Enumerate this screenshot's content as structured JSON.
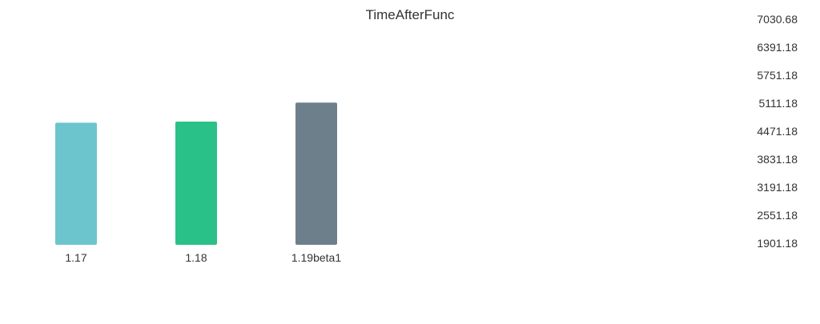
{
  "chart_data": {
    "type": "bar",
    "title": "TimeAfterFunc",
    "xlabel": "",
    "ylabel": "",
    "categories": [
      "1.17",
      "1.18",
      "1.19beta1"
    ],
    "values": [
      4661,
      4685,
      5121
    ],
    "colors": [
      "#6cc5cd",
      "#2ac189",
      "#6d7f8a"
    ],
    "yticks": [
      "1901.18",
      "2551.18",
      "3191.18",
      "3831.18",
      "4471.18",
      "5111.18",
      "5751.18",
      "6391.18",
      "7030.68"
    ],
    "ylim": [
      1901.18,
      7030.68
    ],
    "grid": false,
    "axis_position": "right"
  }
}
